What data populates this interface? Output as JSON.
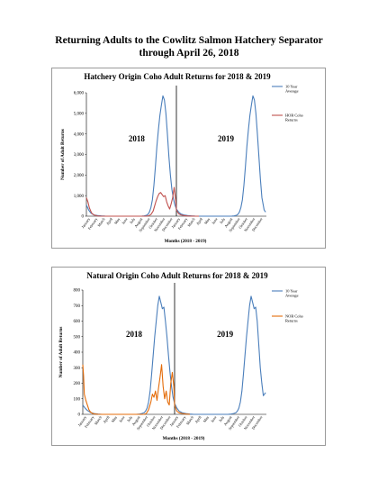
{
  "document": {
    "title_line1": "Returning Adults to the Cowlitz Salmon Hatchery Separator",
    "title_line2": "through April 26, 2018"
  },
  "chart_data": [
    {
      "type": "line",
      "title": "Hatchery Origin Coho Adult Returns for 2018 & 2019",
      "xlabel": "Months (2018 - 2019)",
      "ylabel": "Number of Adult Returns",
      "ylim": [
        0,
        6000
      ],
      "yticks": [
        "0",
        "1,000",
        "2,000",
        "3,000",
        "4,000",
        "5,000",
        "6,000"
      ],
      "months": [
        "January",
        "February",
        "March",
        "April",
        "May",
        "June",
        "July",
        "August",
        "September",
        "October",
        "November",
        "December",
        "January",
        "February",
        "March",
        "April",
        "May",
        "June",
        "July",
        "August",
        "September",
        "October",
        "November",
        "December"
      ],
      "year_labels": [
        "2018",
        "2019"
      ],
      "legend_position": "right",
      "grid": false,
      "series": [
        {
          "name": "10 Year Average",
          "color": "#4a7ebb",
          "x": [
            0,
            0.3,
            0.6,
            1,
            1.5,
            2,
            2.5,
            3,
            4,
            5,
            6,
            7,
            7.4,
            7.7,
            8,
            8.2,
            8.4,
            8.6,
            8.8,
            9,
            9.2,
            9.4,
            9.6,
            9.8,
            10,
            10.2,
            10.4,
            10.6,
            10.8,
            11,
            11.2,
            11.4,
            11.6,
            11.8,
            12,
            12.3,
            12.6,
            13,
            13.5,
            14,
            14.5,
            15,
            16,
            17,
            18,
            19,
            19.4,
            19.7,
            20,
            20.2,
            20.4,
            20.6,
            20.8,
            21,
            21.2,
            21.4,
            21.6,
            21.8,
            22,
            22.2,
            22.4,
            22.6,
            22.8,
            23,
            23.2,
            23.4,
            23.7,
            23.9
          ],
          "y": [
            550,
            300,
            150,
            60,
            30,
            15,
            5,
            0,
            0,
            0,
            0,
            0,
            5,
            15,
            40,
            90,
            200,
            420,
            800,
            1500,
            2400,
            3400,
            4200,
            4900,
            5400,
            5850,
            5650,
            5000,
            4000,
            2900,
            2000,
            1300,
            850,
            550,
            350,
            200,
            110,
            60,
            30,
            15,
            5,
            0,
            0,
            0,
            0,
            0,
            5,
            15,
            40,
            90,
            200,
            420,
            800,
            1500,
            2400,
            3400,
            4200,
            4900,
            5400,
            5850,
            5650,
            5000,
            4000,
            2900,
            1800,
            900,
            300,
            200
          ]
        },
        {
          "name": "HOR Coho Returns",
          "color": "#c0504d",
          "x": [
            0,
            0.2,
            0.4,
            0.7,
            1,
            1.5,
            2,
            3,
            4,
            5,
            6,
            7,
            7.5,
            8,
            8.3,
            8.6,
            8.9,
            9.1,
            9.3,
            9.5,
            9.7,
            9.9,
            10.1,
            10.3,
            10.5,
            10.7,
            10.9,
            11.1,
            11.3,
            11.5,
            11.7,
            11.9,
            12,
            12.3,
            12.6,
            13,
            13.5,
            14,
            14.5,
            15
          ],
          "y": [
            900,
            700,
            400,
            150,
            60,
            10,
            0,
            0,
            0,
            0,
            0,
            0,
            0,
            5,
            20,
            80,
            250,
            500,
            750,
            950,
            1100,
            1150,
            1050,
            950,
            1000,
            700,
            500,
            350,
            600,
            900,
            1400,
            800,
            300,
            120,
            60,
            30,
            10,
            5,
            0,
            0
          ]
        }
      ]
    },
    {
      "type": "line",
      "title": "Natural Origin Coho Adult Returns for 2018 & 2019",
      "xlabel": "Months (2018 - 2019)",
      "ylabel": "Number of Adult Returns",
      "ylim": [
        0,
        800
      ],
      "yticks": [
        "0",
        "100",
        "200",
        "300",
        "400",
        "500",
        "600",
        "700",
        "800"
      ],
      "months": [
        "January",
        "February",
        "March",
        "April",
        "May",
        "June",
        "July",
        "August",
        "September",
        "October",
        "November",
        "December",
        "January",
        "February",
        "March",
        "April",
        "May",
        "June",
        "July",
        "August",
        "September",
        "October",
        "November",
        "December"
      ],
      "year_labels": [
        "2018",
        "2019"
      ],
      "legend_position": "right",
      "grid": false,
      "series": [
        {
          "name": "10 Year Average",
          "color": "#4a7ebb",
          "x": [
            0,
            0.3,
            0.6,
            1,
            1.5,
            2,
            2.5,
            3,
            4,
            5,
            6,
            7,
            7.4,
            7.7,
            8,
            8.2,
            8.4,
            8.6,
            8.8,
            9,
            9.2,
            9.4,
            9.6,
            9.8,
            10,
            10.2,
            10.4,
            10.6,
            10.8,
            11,
            11.2,
            11.4,
            11.6,
            11.8,
            12,
            12.3,
            12.6,
            13,
            13.5,
            14,
            14.5,
            15,
            16,
            17,
            18,
            19,
            19.4,
            19.7,
            20,
            20.2,
            20.4,
            20.6,
            20.8,
            21,
            21.2,
            21.4,
            21.6,
            21.8,
            22,
            22.2,
            22.4,
            22.6,
            22.8,
            23,
            23.2,
            23.4,
            23.6,
            23.9
          ],
          "y": [
            60,
            40,
            25,
            12,
            5,
            2,
            0,
            0,
            0,
            0,
            0,
            0,
            2,
            5,
            10,
            20,
            40,
            80,
            150,
            260,
            380,
            500,
            600,
            700,
            760,
            720,
            680,
            690,
            600,
            500,
            380,
            270,
            180,
            110,
            70,
            40,
            20,
            10,
            5,
            2,
            0,
            0,
            0,
            0,
            0,
            0,
            2,
            5,
            10,
            20,
            40,
            80,
            150,
            260,
            380,
            500,
            600,
            700,
            760,
            720,
            680,
            690,
            600,
            450,
            300,
            200,
            120,
            140
          ]
        },
        {
          "name": "NOR Coho Returns",
          "color": "#e46c0a",
          "x": [
            0,
            0.1,
            0.2,
            0.4,
            0.6,
            0.8,
            1,
            1.3,
            1.7,
            2,
            3,
            4,
            5,
            6,
            7,
            7.5,
            8,
            8.3,
            8.6,
            8.9,
            9.1,
            9.3,
            9.5,
            9.7,
            9.9,
            10.1,
            10.3,
            10.5,
            10.7,
            10.9,
            11.1,
            11.3,
            11.5,
            11.7,
            11.9,
            12,
            12.3,
            12.6,
            13,
            13.5,
            14
          ],
          "y": [
            320,
            250,
            130,
            90,
            60,
            30,
            15,
            5,
            2,
            0,
            0,
            0,
            0,
            0,
            0,
            0,
            0,
            5,
            30,
            80,
            130,
            110,
            150,
            90,
            170,
            240,
            320,
            180,
            100,
            150,
            80,
            60,
            200,
            270,
            180,
            60,
            20,
            10,
            5,
            2,
            0
          ]
        }
      ]
    }
  ]
}
